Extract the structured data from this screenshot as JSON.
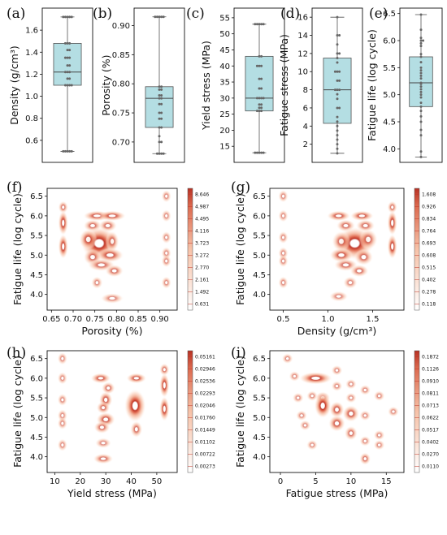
{
  "chart_data": [
    {
      "id": "a",
      "type": "box",
      "label": "(a)",
      "ylabel": "Density (g/cm³)",
      "ylim": [
        0.4,
        1.8
      ],
      "yticks": [
        0.6,
        0.8,
        1.0,
        1.2,
        1.4,
        1.6
      ],
      "box": {
        "whisker_low": 0.5,
        "q1": 1.1,
        "median": 1.22,
        "q3": 1.48,
        "whisker_high": 1.72
      },
      "points": [
        0.5,
        0.5,
        0.5,
        0.5,
        0.5,
        1.1,
        1.1,
        1.1,
        1.1,
        1.16,
        1.16,
        1.22,
        1.22,
        1.22,
        1.28,
        1.28,
        1.35,
        1.35,
        1.35,
        1.42,
        1.42,
        1.48,
        1.48,
        1.48,
        1.72,
        1.72,
        1.72,
        1.72,
        1.72
      ]
    },
    {
      "id": "b",
      "type": "box",
      "label": "(b)",
      "ylabel": "Porosity (%)",
      "ylim": [
        0.665,
        0.93
      ],
      "yticks": [
        0.7,
        0.75,
        0.8,
        0.85,
        0.9
      ],
      "box": {
        "whisker_low": 0.68,
        "q1": 0.725,
        "median": 0.775,
        "q3": 0.795,
        "whisker_high": 0.915
      },
      "points": [
        0.68,
        0.68,
        0.68,
        0.68,
        0.7,
        0.7,
        0.71,
        0.725,
        0.725,
        0.74,
        0.74,
        0.75,
        0.75,
        0.765,
        0.765,
        0.775,
        0.775,
        0.78,
        0.78,
        0.79,
        0.79,
        0.795,
        0.795,
        0.915,
        0.915,
        0.915,
        0.915,
        0.915
      ]
    },
    {
      "id": "c",
      "type": "box",
      "label": "(c)",
      "ylabel": "Yield stress (MPa)",
      "ylim": [
        10,
        58
      ],
      "yticks": [
        15,
        20,
        25,
        30,
        35,
        40,
        45,
        50,
        55
      ],
      "box": {
        "whisker_low": 13,
        "q1": 26,
        "median": 30,
        "q3": 43,
        "whisker_high": 53
      },
      "points": [
        13,
        13,
        13,
        13,
        13,
        26,
        26,
        26,
        27,
        27,
        28,
        28,
        30,
        30,
        30,
        30,
        33,
        33,
        36,
        36,
        40,
        40,
        40,
        43,
        43,
        53,
        53,
        53,
        53,
        53
      ]
    },
    {
      "id": "d",
      "type": "box",
      "label": "(d)",
      "ylabel": "Fatigue stress (MPa)",
      "ylim": [
        0,
        17
      ],
      "yticks": [
        2,
        4,
        6,
        8,
        10,
        12,
        14,
        16
      ],
      "box": {
        "whisker_low": 1,
        "q1": 4.3,
        "median": 8,
        "q3": 11.5,
        "whisker_high": 16
      },
      "points": [
        1,
        1.5,
        2,
        2.5,
        3,
        3.5,
        4,
        4.5,
        5,
        6,
        6,
        7,
        7.5,
        8,
        8,
        8,
        9,
        9,
        10,
        10,
        10,
        11,
        11.5,
        12,
        12,
        13,
        14,
        14,
        16
      ]
    },
    {
      "id": "e",
      "type": "box",
      "label": "(e)",
      "ylabel": "Fatigue life (log cycle)",
      "ylim": [
        3.75,
        6.6
      ],
      "yticks": [
        4.0,
        4.5,
        5.0,
        5.5,
        6.0,
        6.5
      ],
      "box": {
        "whisker_low": 3.85,
        "q1": 4.78,
        "median": 5.22,
        "q3": 5.7,
        "whisker_high": 6.48
      },
      "points": [
        3.85,
        3.95,
        4.25,
        4.35,
        4.5,
        4.6,
        4.7,
        4.78,
        4.85,
        4.95,
        5.0,
        5.05,
        5.1,
        5.15,
        5.2,
        5.22,
        5.3,
        5.35,
        5.4,
        5.45,
        5.5,
        5.6,
        5.7,
        5.75,
        5.9,
        5.95,
        6.0,
        6.0,
        6.05,
        6.2,
        6.48
      ]
    },
    {
      "id": "f",
      "type": "heatmap",
      "label": "(f)",
      "xlabel": "Porosity (%)",
      "ylabel": "Fatigue life (log cycle)",
      "xlim": [
        0.64,
        0.94
      ],
      "ylim": [
        3.6,
        6.7
      ],
      "xticks": [
        "0.65",
        "0.70",
        "0.75",
        "0.80",
        "0.85",
        "0.90"
      ],
      "xtick_values": [
        0.65,
        0.7,
        0.75,
        0.8,
        0.85,
        0.9
      ],
      "yticks": [
        "4.0",
        "4.5",
        "5.0",
        "5.5",
        "6.0",
        "6.5"
      ],
      "ytick_values": [
        4.0,
        4.5,
        5.0,
        5.5,
        6.0,
        6.5
      ],
      "colorbar": [
        "0.631",
        "1.492",
        "2.161",
        "2.770",
        "3.272",
        "3.723",
        "4.116",
        "4.495",
        "4.987",
        "8.646"
      ],
      "blobs": [
        [
          0.677,
          6.22,
          0.004,
          0.06,
          0.7
        ],
        [
          0.677,
          5.82,
          0.004,
          0.12,
          0.9
        ],
        [
          0.677,
          5.22,
          0.004,
          0.12,
          0.9
        ],
        [
          0.755,
          6.0,
          0.012,
          0.05,
          0.8
        ],
        [
          0.79,
          6.0,
          0.012,
          0.05,
          0.8
        ],
        [
          0.745,
          5.75,
          0.008,
          0.06,
          0.7
        ],
        [
          0.78,
          5.75,
          0.008,
          0.06,
          0.7
        ],
        [
          0.76,
          5.3,
          0.016,
          0.16,
          1.0
        ],
        [
          0.735,
          5.4,
          0.008,
          0.1,
          0.8
        ],
        [
          0.79,
          5.35,
          0.006,
          0.1,
          0.7
        ],
        [
          0.785,
          5.0,
          0.012,
          0.07,
          0.8
        ],
        [
          0.745,
          4.95,
          0.008,
          0.08,
          0.7
        ],
        [
          0.765,
          4.75,
          0.012,
          0.06,
          0.7
        ],
        [
          0.795,
          4.6,
          0.008,
          0.06,
          0.7
        ],
        [
          0.755,
          4.3,
          0.005,
          0.06,
          0.6
        ],
        [
          0.79,
          3.9,
          0.01,
          0.05,
          0.6
        ],
        [
          0.915,
          6.5,
          0.004,
          0.06,
          0.6
        ],
        [
          0.915,
          6.0,
          0.004,
          0.06,
          0.6
        ],
        [
          0.915,
          5.45,
          0.004,
          0.06,
          0.6
        ],
        [
          0.915,
          5.05,
          0.004,
          0.06,
          0.6
        ],
        [
          0.915,
          4.85,
          0.004,
          0.06,
          0.6
        ],
        [
          0.915,
          4.3,
          0.004,
          0.06,
          0.6
        ]
      ]
    },
    {
      "id": "g",
      "type": "heatmap",
      "label": "(g)",
      "xlabel": "Density (g/cm³)",
      "ylabel": "Fatigue life (log cycle)",
      "xlim": [
        0.35,
        1.85
      ],
      "ylim": [
        3.6,
        6.7
      ],
      "xticks": [
        "0.5",
        "1.0",
        "1.5"
      ],
      "xtick_values": [
        0.5,
        1.0,
        1.5
      ],
      "yticks": [
        "4.0",
        "4.5",
        "5.0",
        "5.5",
        "6.0",
        "6.5"
      ],
      "ytick_values": [
        4.0,
        4.5,
        5.0,
        5.5,
        6.0,
        6.5
      ],
      "colorbar": [
        "0.118",
        "0.278",
        "0.402",
        "0.515",
        "0.608",
        "0.693",
        "0.764",
        "0.834",
        "0.926",
        "1.608"
      ],
      "blobs": [
        [
          0.5,
          6.5,
          0.02,
          0.06,
          0.6
        ],
        [
          0.5,
          6.0,
          0.02,
          0.06,
          0.6
        ],
        [
          0.5,
          5.45,
          0.02,
          0.06,
          0.6
        ],
        [
          0.5,
          5.05,
          0.02,
          0.06,
          0.6
        ],
        [
          0.5,
          4.85,
          0.02,
          0.06,
          0.6
        ],
        [
          0.5,
          4.3,
          0.02,
          0.06,
          0.6
        ],
        [
          1.12,
          6.0,
          0.05,
          0.05,
          0.8
        ],
        [
          1.38,
          6.0,
          0.05,
          0.05,
          0.8
        ],
        [
          1.2,
          5.75,
          0.04,
          0.06,
          0.7
        ],
        [
          1.42,
          5.75,
          0.04,
          0.06,
          0.7
        ],
        [
          1.3,
          5.3,
          0.08,
          0.16,
          1.0
        ],
        [
          1.15,
          5.35,
          0.04,
          0.1,
          0.7
        ],
        [
          1.45,
          5.4,
          0.04,
          0.1,
          0.7
        ],
        [
          1.15,
          5.0,
          0.05,
          0.07,
          0.8
        ],
        [
          1.4,
          4.95,
          0.04,
          0.08,
          0.7
        ],
        [
          1.2,
          4.75,
          0.05,
          0.06,
          0.7
        ],
        [
          1.35,
          4.6,
          0.04,
          0.06,
          0.7
        ],
        [
          1.25,
          4.3,
          0.03,
          0.06,
          0.6
        ],
        [
          1.12,
          3.95,
          0.04,
          0.05,
          0.6
        ],
        [
          1.72,
          6.22,
          0.02,
          0.06,
          0.7
        ],
        [
          1.72,
          5.82,
          0.02,
          0.12,
          0.9
        ],
        [
          1.72,
          5.22,
          0.02,
          0.12,
          0.9
        ]
      ]
    },
    {
      "id": "h",
      "type": "heatmap",
      "label": "(h)",
      "xlabel": "Yield stress (MPa)",
      "ylabel": "Fatigue life (log cycle)",
      "xlim": [
        7,
        58
      ],
      "ylim": [
        3.6,
        6.7
      ],
      "xticks": [
        "10",
        "20",
        "30",
        "40",
        "50"
      ],
      "xtick_values": [
        10,
        20,
        30,
        40,
        50
      ],
      "yticks": [
        "4.0",
        "4.5",
        "5.0",
        "5.5",
        "6.0",
        "6.5"
      ],
      "ytick_values": [
        4.0,
        4.5,
        5.0,
        5.5,
        6.0,
        6.5
      ],
      "colorbar": [
        "0.00273",
        "0.00722",
        "0.01102",
        "0.01449",
        "0.01760",
        "0.02046",
        "0.02293",
        "0.02536",
        "0.02946",
        "0.05161"
      ],
      "blobs": [
        [
          13,
          6.5,
          0.6,
          0.06,
          0.6
        ],
        [
          13,
          6.0,
          0.6,
          0.06,
          0.6
        ],
        [
          13,
          5.45,
          0.6,
          0.06,
          0.6
        ],
        [
          13,
          5.05,
          0.6,
          0.06,
          0.6
        ],
        [
          13,
          4.85,
          0.6,
          0.06,
          0.6
        ],
        [
          13,
          4.3,
          0.6,
          0.06,
          0.6
        ],
        [
          28,
          6.0,
          1.5,
          0.05,
          0.8
        ],
        [
          31,
          5.75,
          1.0,
          0.06,
          0.7
        ],
        [
          30,
          5.45,
          1.0,
          0.08,
          0.8
        ],
        [
          29,
          5.25,
          1.0,
          0.06,
          0.7
        ],
        [
          30,
          4.95,
          1.4,
          0.07,
          0.8
        ],
        [
          28.5,
          4.75,
          1.2,
          0.06,
          0.7
        ],
        [
          29,
          4.35,
          1.2,
          0.05,
          0.6
        ],
        [
          29,
          3.95,
          1.5,
          0.05,
          0.7
        ],
        [
          42,
          6.0,
          1.5,
          0.05,
          0.8
        ],
        [
          41.5,
          5.3,
          1.6,
          0.16,
          1.0
        ],
        [
          42,
          4.7,
          0.9,
          0.08,
          0.7
        ],
        [
          53,
          6.22,
          0.6,
          0.06,
          0.7
        ],
        [
          53,
          5.82,
          0.6,
          0.12,
          0.9
        ],
        [
          53,
          5.22,
          0.6,
          0.12,
          0.9
        ]
      ]
    },
    {
      "id": "i",
      "type": "heatmap",
      "label": "(i)",
      "xlabel": "Fatigue stress (MPa)",
      "ylabel": "Fatigue life (log cycle)",
      "xlim": [
        -1.5,
        17.5
      ],
      "ylim": [
        3.6,
        6.7
      ],
      "xticks": [
        "0",
        "5",
        "10",
        "15"
      ],
      "xtick_values": [
        0,
        5,
        10,
        15
      ],
      "yticks": [
        "4.0",
        "4.5",
        "5.0",
        "5.5",
        "6.0",
        "6.5"
      ],
      "ytick_values": [
        4.0,
        4.5,
        5.0,
        5.5,
        6.0,
        6.5
      ],
      "colorbar": [
        "0.0110",
        "0.0270",
        "0.0402",
        "0.0517",
        "0.0622",
        "0.0713",
        "0.0811",
        "0.0910",
        "0.1126",
        "0.1872"
      ],
      "blobs": [
        [
          1,
          6.5,
          0.3,
          0.05,
          0.6
        ],
        [
          2,
          6.05,
          0.3,
          0.05,
          0.6
        ],
        [
          2.5,
          5.5,
          0.3,
          0.05,
          0.6
        ],
        [
          3,
          5.05,
          0.3,
          0.05,
          0.6
        ],
        [
          3.5,
          4.8,
          0.3,
          0.05,
          0.6
        ],
        [
          4.5,
          4.3,
          0.3,
          0.05,
          0.6
        ],
        [
          5,
          6.0,
          0.9,
          0.06,
          0.9
        ],
        [
          4.5,
          5.55,
          0.3,
          0.05,
          0.6
        ],
        [
          6,
          5.5,
          0.4,
          0.06,
          0.7
        ],
        [
          6,
          5.3,
          0.45,
          0.12,
          1.0
        ],
        [
          8,
          6.2,
          0.3,
          0.05,
          0.6
        ],
        [
          8,
          5.8,
          0.3,
          0.05,
          0.6
        ],
        [
          8,
          5.2,
          0.4,
          0.08,
          0.8
        ],
        [
          8,
          4.85,
          0.45,
          0.08,
          0.8
        ],
        [
          10,
          5.85,
          0.3,
          0.05,
          0.6
        ],
        [
          10,
          5.5,
          0.3,
          0.05,
          0.6
        ],
        [
          10,
          5.1,
          0.45,
          0.08,
          0.8
        ],
        [
          10,
          4.6,
          0.35,
          0.07,
          0.7
        ],
        [
          12,
          5.7,
          0.3,
          0.05,
          0.6
        ],
        [
          12,
          5.05,
          0.3,
          0.05,
          0.6
        ],
        [
          12,
          4.4,
          0.3,
          0.05,
          0.6
        ],
        [
          12,
          3.95,
          0.3,
          0.06,
          0.7
        ],
        [
          14,
          5.55,
          0.3,
          0.05,
          0.6
        ],
        [
          14,
          4.55,
          0.3,
          0.05,
          0.6
        ],
        [
          14,
          4.3,
          0.3,
          0.05,
          0.6
        ],
        [
          16,
          5.15,
          0.3,
          0.05,
          0.6
        ]
      ]
    }
  ]
}
